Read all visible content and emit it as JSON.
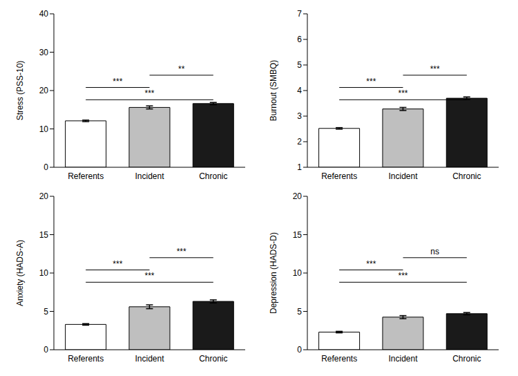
{
  "chart_data": [
    {
      "type": "bar",
      "y_label": "Stress (PSS-10)",
      "categories": [
        "Referents",
        "Incident",
        "Chronic"
      ],
      "values": [
        12.1,
        15.6,
        16.6
      ],
      "errors": [
        0.2,
        0.4,
        0.3
      ],
      "colors": [
        "#ffffff",
        "#bfbfbf",
        "#1a1a1a"
      ],
      "ylim": [
        0,
        40
      ],
      "yticks": [
        0,
        10,
        20,
        30,
        40
      ],
      "grid": false,
      "brackets": [
        {
          "from": "Referents",
          "to": "Incident",
          "label": "***"
        },
        {
          "from": "Incident",
          "to": "Chronic",
          "label": "**"
        },
        {
          "from": "Referents",
          "to": "Chronic",
          "label": "***"
        }
      ]
    },
    {
      "type": "bar",
      "y_label": "Burnout (SMBQ)",
      "categories": [
        "Referents",
        "Incident",
        "Chronic"
      ],
      "values": [
        2.52,
        3.28,
        3.7
      ],
      "errors": [
        0.03,
        0.06,
        0.05
      ],
      "colors": [
        "#ffffff",
        "#bfbfbf",
        "#1a1a1a"
      ],
      "ylim": [
        1,
        7
      ],
      "yticks": [
        1,
        2,
        3,
        4,
        5,
        6,
        7
      ],
      "grid": false,
      "brackets": [
        {
          "from": "Referents",
          "to": "Incident",
          "label": "***"
        },
        {
          "from": "Incident",
          "to": "Chronic",
          "label": "***"
        },
        {
          "from": "Referents",
          "to": "Chronic",
          "label": "***"
        }
      ]
    },
    {
      "type": "bar",
      "y_label": "Anxiety (HADS-A)",
      "categories": [
        "Referents",
        "Incident",
        "Chronic"
      ],
      "values": [
        3.3,
        5.6,
        6.3
      ],
      "errors": [
        0.1,
        0.25,
        0.2
      ],
      "colors": [
        "#ffffff",
        "#bfbfbf",
        "#1a1a1a"
      ],
      "ylim": [
        0,
        20
      ],
      "yticks": [
        0,
        5,
        10,
        15,
        20
      ],
      "grid": false,
      "brackets": [
        {
          "from": "Referents",
          "to": "Incident",
          "label": "***"
        },
        {
          "from": "Incident",
          "to": "Chronic",
          "label": "***"
        },
        {
          "from": "Referents",
          "to": "Chronic",
          "label": "***"
        }
      ]
    },
    {
      "type": "bar",
      "y_label": "Depression (HADS-D)",
      "categories": [
        "Referents",
        "Incident",
        "Chronic"
      ],
      "values": [
        2.3,
        4.25,
        4.7
      ],
      "errors": [
        0.1,
        0.2,
        0.15
      ],
      "colors": [
        "#ffffff",
        "#bfbfbf",
        "#1a1a1a"
      ],
      "ylim": [
        0,
        20
      ],
      "yticks": [
        0,
        5,
        10,
        15,
        20
      ],
      "grid": false,
      "brackets": [
        {
          "from": "Referents",
          "to": "Incident",
          "label": "***"
        },
        {
          "from": "Incident",
          "to": "Chronic",
          "label": "ns"
        },
        {
          "from": "Referents",
          "to": "Chronic",
          "label": "***"
        }
      ]
    }
  ]
}
